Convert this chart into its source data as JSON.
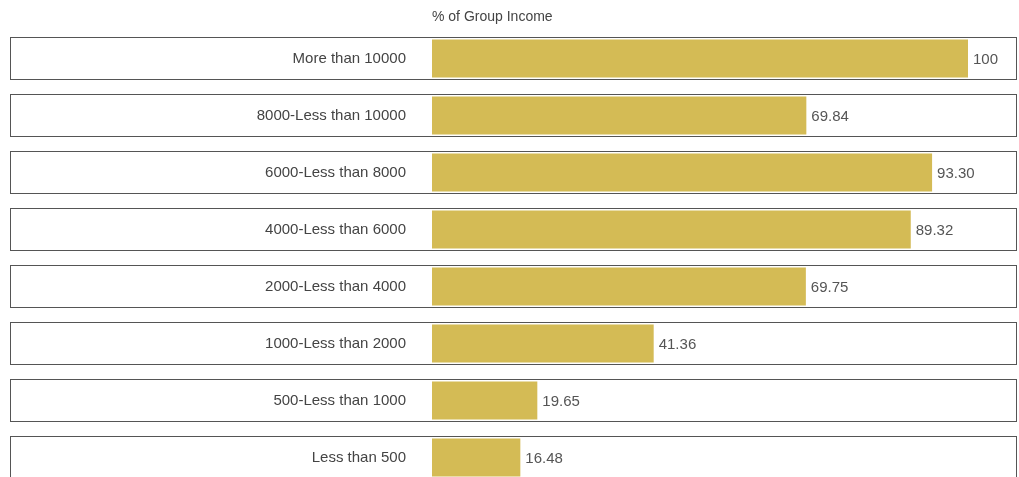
{
  "chart_data": {
    "type": "bar",
    "orientation": "horizontal",
    "title": "% of Group Income",
    "categories": [
      "More than 10000",
      "8000-Less than 10000",
      "6000-Less than 8000",
      "4000-Less than 6000",
      "2000-Less than 4000",
      "1000-Less than 2000",
      "500-Less than 1000",
      "Less than 500"
    ],
    "values": [
      100,
      69.84,
      93.3,
      89.32,
      69.75,
      41.36,
      19.65,
      16.48
    ],
    "value_labels": [
      "100",
      "69.84",
      "93.30",
      "89.32",
      "69.75",
      "41.36",
      "19.65",
      "16.48"
    ],
    "color": "#d4bb55"
  }
}
